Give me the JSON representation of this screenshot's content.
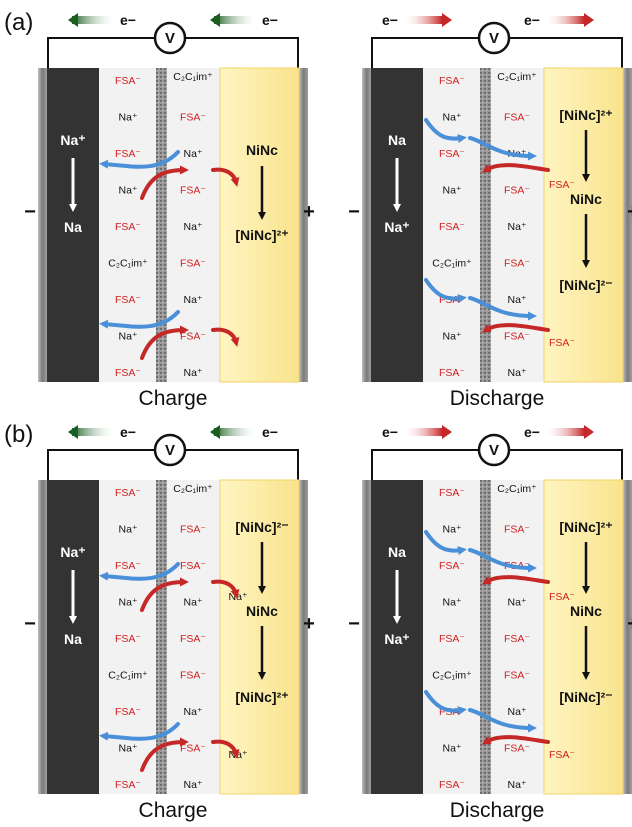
{
  "colors": {
    "anode": "#333333",
    "cathode": "#fbeeae",
    "electrolyte": "#f1f1f1",
    "separator": "#8a8a8a",
    "fsa_text": "#d02020",
    "arrow_blue": "#4a90d9",
    "arrow_red": "#c62828",
    "arrow_green": "#2e7d32",
    "arrow_orange": "#e06a2a"
  },
  "rows": [
    {
      "row_label": "(a)",
      "cells": [
        {
          "caption": "Charge",
          "electron": "e−",
          "electron_arrow": "green-left",
          "voltmeter": "V",
          "minus_sign": "−",
          "plus_sign": "+",
          "anode_top": "Na⁺",
          "anode_bottom": "Na",
          "cathode_species": [
            "NiNc",
            "[NiNc]²⁺"
          ],
          "left_ions": [
            "FSA⁻",
            "Na⁺",
            "FSA⁻",
            "Na⁺",
            "FSA⁻",
            "C₂C₁im⁺",
            "FSA⁻",
            "Na⁺",
            "FSA⁻"
          ],
          "right_ions": [
            "C₂C₁im⁺",
            "FSA⁻",
            "Na⁺",
            "FSA⁻",
            "Na⁺",
            "FSA⁻",
            "Na⁺",
            "FSA⁻",
            "Na⁺"
          ],
          "side_ions": []
        },
        {
          "caption": "Discharge",
          "electron": "e−",
          "electron_arrow": "orange-right",
          "voltmeter": "V",
          "minus_sign": "−",
          "plus_sign": "+",
          "anode_top": "Na",
          "anode_bottom": "Na⁺",
          "cathode_species": [
            "[NiNc]²⁺",
            "NiNc",
            "[NiNc]²⁻"
          ],
          "left_ions": [
            "FSA⁻",
            "Na⁺",
            "FSA⁻",
            "Na⁺",
            "FSA⁻",
            "C₂C₁im⁺",
            "FSA⁻",
            "Na⁺",
            "FSA⁻"
          ],
          "right_ions": [
            "C₂C₁im⁺",
            "FSA⁻",
            "Na⁺",
            "FSA⁻",
            "Na⁺",
            "FSA⁻",
            "Na⁺",
            "FSA⁻",
            "Na⁺"
          ],
          "side_ions": [
            "FSA⁻",
            "FSA⁻"
          ]
        }
      ]
    },
    {
      "row_label": "(b)",
      "cells": [
        {
          "caption": "Charge",
          "electron": "e−",
          "electron_arrow": "green-left",
          "voltmeter": "V",
          "minus_sign": "−",
          "plus_sign": "+",
          "anode_top": "Na⁺",
          "anode_bottom": "Na",
          "cathode_species": [
            "[NiNc]²⁻",
            "NiNc",
            "[NiNc]²⁺"
          ],
          "left_ions": [
            "FSA⁻",
            "Na⁺",
            "FSA⁻",
            "Na⁺",
            "FSA⁻",
            "C₂C₁im⁺",
            "FSA⁻",
            "Na⁺",
            "FSA⁻"
          ],
          "right_ions": [
            "C₂C₁im⁺",
            "FSA⁻",
            "FSA⁻",
            "Na⁺",
            "FSA⁻",
            "FSA⁻",
            "Na⁺",
            "FSA⁻",
            "Na⁺"
          ],
          "side_ions": [
            "Na⁺",
            "Na⁺"
          ]
        },
        {
          "caption": "Discharge",
          "electron": "e−",
          "electron_arrow": "orange-right",
          "voltmeter": "V",
          "minus_sign": "−",
          "plus_sign": "+",
          "anode_top": "Na",
          "anode_bottom": "Na⁺",
          "cathode_species": [
            "[NiNc]²⁺",
            "NiNc",
            "[NiNc]²⁻"
          ],
          "left_ions": [
            "FSA⁻",
            "Na⁺",
            "FSA⁻",
            "Na⁺",
            "FSA⁻",
            "C₂C₁im⁺",
            "FSA⁻",
            "Na⁺",
            "FSA⁻"
          ],
          "right_ions": [
            "C₂C₁im⁺",
            "FSA⁻",
            "FSA⁻",
            "Na⁺",
            "FSA⁻",
            "FSA⁻",
            "Na⁺",
            "FSA⁻",
            "Na⁺"
          ],
          "side_ions": [
            "FSA⁻",
            "FSA⁻"
          ]
        }
      ]
    }
  ]
}
